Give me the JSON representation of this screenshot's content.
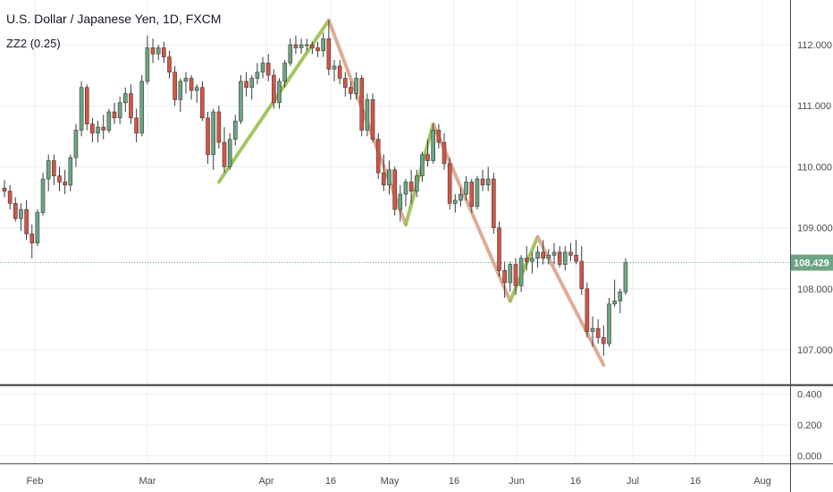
{
  "legend": {
    "title": "U.S. Dollar / Japanese Yen, 1D, FXCM",
    "indicator": "ZZ2 (0.25)"
  },
  "colors": {
    "up": "#6ba583",
    "down": "#d75442",
    "zigzag_up": "#9bbf4f",
    "zigzag_down": "#dca38a",
    "last_price_bg": "#6ba583",
    "grid": "#e9ecf1",
    "axis_text": "#4a4a4a"
  },
  "chart_data": [
    {
      "type": "candlestick",
      "title": "U.S. Dollar / Japanese Yen, 1D, FXCM",
      "x_tick_labels": [
        "Feb",
        "Mar",
        "Apr",
        "16",
        "May",
        "16",
        "Jun",
        "16",
        "Jul",
        "16",
        "Aug"
      ],
      "y_tick_labels": [
        "112.000",
        "111.000",
        "110.000",
        "109.000",
        "108.000",
        "107.000"
      ],
      "ylim": [
        106.7,
        112.55
      ],
      "last_price": 108.429,
      "last_price_label": "108.429",
      "grid": true,
      "ohlc": [
        [
          109.65,
          109.78,
          109.5,
          109.6
        ],
        [
          109.6,
          109.7,
          109.3,
          109.4
        ],
        [
          109.4,
          109.5,
          109.1,
          109.15
        ],
        [
          109.15,
          109.4,
          108.95,
          109.3
        ],
        [
          109.3,
          109.45,
          108.8,
          108.9
        ],
        [
          108.9,
          109.05,
          108.5,
          108.75
        ],
        [
          108.75,
          109.3,
          108.7,
          109.25
        ],
        [
          109.25,
          109.9,
          109.2,
          109.8
        ],
        [
          109.8,
          110.2,
          109.6,
          110.1
        ],
        [
          110.1,
          110.2,
          109.7,
          109.85
        ],
        [
          109.85,
          110.0,
          109.6,
          109.75
        ],
        [
          109.75,
          109.95,
          109.55,
          109.7
        ],
        [
          109.7,
          110.2,
          109.6,
          110.15
        ],
        [
          110.15,
          110.7,
          110.0,
          110.6
        ],
        [
          110.6,
          111.4,
          110.5,
          111.3
        ],
        [
          111.3,
          111.35,
          110.6,
          110.7
        ],
        [
          110.7,
          110.8,
          110.4,
          110.55
        ],
        [
          110.55,
          110.75,
          110.4,
          110.65
        ],
        [
          110.65,
          110.85,
          110.45,
          110.6
        ],
        [
          110.6,
          110.95,
          110.55,
          110.9
        ],
        [
          110.9,
          111.05,
          110.7,
          110.8
        ],
        [
          110.8,
          111.15,
          110.7,
          111.05
        ],
        [
          111.05,
          111.3,
          110.9,
          111.2
        ],
        [
          111.2,
          111.35,
          110.7,
          110.8
        ],
        [
          110.8,
          110.95,
          110.4,
          110.55
        ],
        [
          110.55,
          111.5,
          110.5,
          111.4
        ],
        [
          111.4,
          112.15,
          111.35,
          111.95
        ],
        [
          111.95,
          112.1,
          111.7,
          111.85
        ],
        [
          111.85,
          112.0,
          111.75,
          111.95
        ],
        [
          111.95,
          112.05,
          111.7,
          111.8
        ],
        [
          111.8,
          111.9,
          111.45,
          111.55
        ],
        [
          111.55,
          111.65,
          111.0,
          111.1
        ],
        [
          111.1,
          111.45,
          110.9,
          111.4
        ],
        [
          111.4,
          111.55,
          111.2,
          111.45
        ],
        [
          111.45,
          111.5,
          111.1,
          111.25
        ],
        [
          111.25,
          111.35,
          111.05,
          111.3
        ],
        [
          111.3,
          111.4,
          110.75,
          110.8
        ],
        [
          110.8,
          110.9,
          110.05,
          110.2
        ],
        [
          110.2,
          110.95,
          109.95,
          110.9
        ],
        [
          110.9,
          111.0,
          110.3,
          110.4
        ],
        [
          110.4,
          110.65,
          109.9,
          110.0
        ],
        [
          110.0,
          110.55,
          109.95,
          110.45
        ],
        [
          110.45,
          110.85,
          110.35,
          110.75
        ],
        [
          110.75,
          111.5,
          110.7,
          111.4
        ],
        [
          111.4,
          111.55,
          111.15,
          111.3
        ],
        [
          111.3,
          111.5,
          111.1,
          111.45
        ],
        [
          111.45,
          111.7,
          111.35,
          111.55
        ],
        [
          111.55,
          111.8,
          111.45,
          111.7
        ],
        [
          111.7,
          111.85,
          111.4,
          111.5
        ],
        [
          111.5,
          111.6,
          110.95,
          111.05
        ],
        [
          111.05,
          111.45,
          110.95,
          111.4
        ],
        [
          111.4,
          111.75,
          111.3,
          111.7
        ],
        [
          111.7,
          112.1,
          111.65,
          112.0
        ],
        [
          112.0,
          112.15,
          111.85,
          111.95
        ],
        [
          111.95,
          112.1,
          111.85,
          112.0
        ],
        [
          112.0,
          112.1,
          111.9,
          112.0
        ],
        [
          112.0,
          112.05,
          111.85,
          111.95
        ],
        [
          111.95,
          112.05,
          111.8,
          111.9
        ],
        [
          111.9,
          112.2,
          111.8,
          112.1
        ],
        [
          112.1,
          112.4,
          111.5,
          111.6
        ],
        [
          111.6,
          111.75,
          111.4,
          111.65
        ],
        [
          111.65,
          111.75,
          111.35,
          111.45
        ],
        [
          111.45,
          111.55,
          111.15,
          111.3
        ],
        [
          111.3,
          111.4,
          111.1,
          111.2
        ],
        [
          111.2,
          111.55,
          111.1,
          111.45
        ],
        [
          111.45,
          111.5,
          110.5,
          110.6
        ],
        [
          110.6,
          111.2,
          110.5,
          111.1
        ],
        [
          111.1,
          111.2,
          110.4,
          110.45
        ],
        [
          110.45,
          110.55,
          109.8,
          109.9
        ],
        [
          109.9,
          110.2,
          109.6,
          109.7
        ],
        [
          109.7,
          110.1,
          109.55,
          109.95
        ],
        [
          109.95,
          110.0,
          109.2,
          109.3
        ],
        [
          109.3,
          109.7,
          109.1,
          109.55
        ],
        [
          109.55,
          109.8,
          109.35,
          109.75
        ],
        [
          109.75,
          109.95,
          109.4,
          109.6
        ],
        [
          109.6,
          109.95,
          109.5,
          109.85
        ],
        [
          109.85,
          110.25,
          109.75,
          110.2
        ],
        [
          110.2,
          110.45,
          110.0,
          110.1
        ],
        [
          110.1,
          110.7,
          110.05,
          110.6
        ],
        [
          110.6,
          110.7,
          110.3,
          110.4
        ],
        [
          110.4,
          110.55,
          109.95,
          110.05
        ],
        [
          110.05,
          110.15,
          109.3,
          109.4
        ],
        [
          109.4,
          109.55,
          109.25,
          109.45
        ],
        [
          109.45,
          109.65,
          109.35,
          109.55
        ],
        [
          109.55,
          109.85,
          109.45,
          109.75
        ],
        [
          109.75,
          109.8,
          109.25,
          109.35
        ],
        [
          109.35,
          109.85,
          109.3,
          109.8
        ],
        [
          109.8,
          109.95,
          109.6,
          109.7
        ],
        [
          109.7,
          110.0,
          109.6,
          109.8
        ],
        [
          109.8,
          109.9,
          108.9,
          109.0
        ],
        [
          109.0,
          109.1,
          108.2,
          108.3
        ],
        [
          108.3,
          108.45,
          107.85,
          108.1
        ],
        [
          108.1,
          108.45,
          107.95,
          108.4
        ],
        [
          108.4,
          108.5,
          107.9,
          108.05
        ],
        [
          108.05,
          108.55,
          107.95,
          108.5
        ],
        [
          108.5,
          108.7,
          108.3,
          108.45
        ],
        [
          108.45,
          108.6,
          108.25,
          108.5
        ],
        [
          108.5,
          108.7,
          108.35,
          108.6
        ],
        [
          108.6,
          108.8,
          108.4,
          108.5
        ],
        [
          108.5,
          108.65,
          108.4,
          108.55
        ],
        [
          108.55,
          108.75,
          108.4,
          108.6
        ],
        [
          108.6,
          108.7,
          108.35,
          108.4
        ],
        [
          108.4,
          108.7,
          108.3,
          108.6
        ],
        [
          108.6,
          108.75,
          108.45,
          108.55
        ],
        [
          108.55,
          108.8,
          108.4,
          108.45
        ],
        [
          108.45,
          108.7,
          107.9,
          108.0
        ],
        [
          108.0,
          108.1,
          107.2,
          107.3
        ],
        [
          107.3,
          107.55,
          107.05,
          107.35
        ],
        [
          107.35,
          107.5,
          107.1,
          107.2
        ],
        [
          107.2,
          107.4,
          106.9,
          107.1
        ],
        [
          107.1,
          107.85,
          107.05,
          107.75
        ],
        [
          107.75,
          108.15,
          107.7,
          107.8
        ],
        [
          107.8,
          108.0,
          107.6,
          107.95
        ],
        [
          107.95,
          108.5,
          107.9,
          108.43
        ]
      ],
      "zigzag": [
        {
          "x0": 39,
          "y0": 109.75,
          "x1": 59,
          "y1": 112.4,
          "dir": "up"
        },
        {
          "x0": 59,
          "y0": 112.4,
          "x1": 73,
          "y1": 109.05,
          "dir": "down"
        },
        {
          "x0": 73,
          "y0": 109.05,
          "x1": 78,
          "y1": 110.7,
          "dir": "up"
        },
        {
          "x0": 78,
          "y0": 110.7,
          "x1": 92,
          "y1": 107.8,
          "dir": "down"
        },
        {
          "x0": 92,
          "y0": 107.8,
          "x1": 97,
          "y1": 108.85,
          "dir": "up"
        },
        {
          "x0": 97,
          "y0": 108.85,
          "x1": 109,
          "y1": 106.75,
          "dir": "down"
        }
      ]
    },
    {
      "type": "line",
      "title": "ZZ2 (0.25)",
      "y_tick_labels": [
        "0.400",
        "0.200",
        "0.000"
      ],
      "ylim": [
        -0.05,
        0.45
      ],
      "series": []
    }
  ]
}
